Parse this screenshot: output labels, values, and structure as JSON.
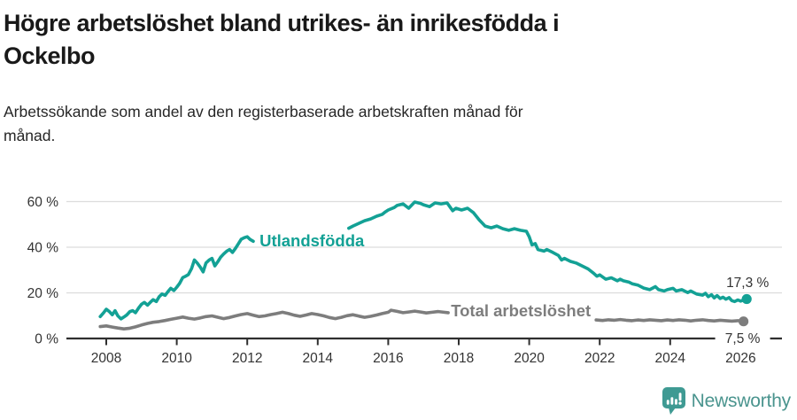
{
  "header": {
    "title_lines": [
      "Högre arbetslöshet bland utrikes- än inrikesfödda i",
      "Ockelbo"
    ],
    "subtitle_lines": [
      "Arbetssökande som andel av den registerbaserade arbetskraften månad för",
      "månad."
    ]
  },
  "footer": {
    "brand_name": "Newsworthy",
    "brand_color": "#4a948e",
    "icon_color": "#3f9a93"
  },
  "chart_data": {
    "type": "line",
    "title": "Högre arbetslöshet bland utrikes- än inrikesfödda i Ockelbo",
    "subtitle": "Arbetssökande som andel av den registerbaserade arbetskraften månad för månad.",
    "units": "%",
    "grid": true,
    "legend_position": "inline-labels",
    "colors": {
      "grid": "#dcdcdc",
      "axis": "#2f2f2f",
      "tick_text": "#333333",
      "annotation_text": "#333333"
    },
    "x_axis": {
      "tick_years": [
        2008,
        2010,
        2012,
        2014,
        2016,
        2018,
        2020,
        2022,
        2024,
        2026
      ],
      "tick_labels": [
        "2008",
        "2010",
        "2012",
        "2014",
        "2016",
        "2018",
        "2020",
        "2022",
        "2024",
        "2026"
      ],
      "range": [
        2007.7,
        2027.3
      ]
    },
    "y_axis": {
      "tick_values": [
        0,
        20,
        40,
        60
      ],
      "tick_labels": [
        "0 %",
        "20 %",
        "40 %",
        "60 %"
      ],
      "range": [
        0,
        63
      ]
    },
    "series": [
      {
        "name": "Utlandsfödda",
        "label": "Utlandsfödda",
        "color": "#13a195",
        "label_anchor": {
          "year": 2012.35,
          "value": 43.0
        },
        "end_label": "17,3 %",
        "end_value": 17.3,
        "end_label_position": "above",
        "segments": [
          [
            [
              2007.83,
              9.6
            ],
            [
              2007.92,
              11.2
            ],
            [
              2008.0,
              12.8
            ],
            [
              2008.08,
              11.9
            ],
            [
              2008.17,
              10.4
            ],
            [
              2008.25,
              12.2
            ],
            [
              2008.33,
              9.9
            ],
            [
              2008.42,
              8.6
            ],
            [
              2008.5,
              9.4
            ],
            [
              2008.58,
              10.3
            ],
            [
              2008.67,
              11.8
            ],
            [
              2008.75,
              12.2
            ],
            [
              2008.83,
              11.3
            ],
            [
              2008.92,
              13.4
            ],
            [
              2009.0,
              15.0
            ],
            [
              2009.08,
              15.8
            ],
            [
              2009.17,
              14.6
            ],
            [
              2009.25,
              15.9
            ],
            [
              2009.33,
              17.0
            ],
            [
              2009.42,
              16.2
            ],
            [
              2009.5,
              18.3
            ],
            [
              2009.58,
              19.5
            ],
            [
              2009.67,
              18.9
            ],
            [
              2009.75,
              20.5
            ],
            [
              2009.83,
              22.0
            ],
            [
              2009.92,
              21.0
            ],
            [
              2010.0,
              22.5
            ],
            [
              2010.08,
              24.1
            ],
            [
              2010.17,
              26.7
            ],
            [
              2010.25,
              27.3
            ],
            [
              2010.33,
              28.0
            ],
            [
              2010.42,
              30.6
            ],
            [
              2010.5,
              34.4
            ],
            [
              2010.58,
              33.1
            ],
            [
              2010.67,
              31.2
            ],
            [
              2010.75,
              29.2
            ],
            [
              2010.83,
              33.1
            ],
            [
              2010.92,
              34.4
            ],
            [
              2011.0,
              35.1
            ],
            [
              2011.08,
              31.8
            ],
            [
              2011.17,
              33.8
            ],
            [
              2011.25,
              35.7
            ],
            [
              2011.33,
              37.0
            ],
            [
              2011.42,
              38.3
            ],
            [
              2011.5,
              39.0
            ],
            [
              2011.58,
              37.7
            ],
            [
              2011.67,
              39.6
            ],
            [
              2011.75,
              41.6
            ],
            [
              2011.83,
              43.5
            ],
            [
              2011.92,
              44.2
            ],
            [
              2012.0,
              44.6
            ],
            [
              2012.08,
              43.4
            ],
            [
              2012.17,
              42.6
            ]
          ],
          [
            [
              2014.88,
              48.3
            ],
            [
              2015.0,
              49.3
            ],
            [
              2015.17,
              50.5
            ],
            [
              2015.33,
              51.6
            ],
            [
              2015.5,
              52.4
            ],
            [
              2015.67,
              53.6
            ],
            [
              2015.83,
              54.4
            ],
            [
              2015.92,
              55.5
            ],
            [
              2016.0,
              56.3
            ],
            [
              2016.17,
              57.4
            ],
            [
              2016.25,
              58.3
            ],
            [
              2016.42,
              59.0
            ],
            [
              2016.58,
              57.1
            ],
            [
              2016.75,
              59.8
            ],
            [
              2016.92,
              59.2
            ],
            [
              2017.0,
              58.6
            ],
            [
              2017.17,
              57.8
            ],
            [
              2017.33,
              59.4
            ],
            [
              2017.5,
              59.0
            ],
            [
              2017.67,
              59.4
            ],
            [
              2017.83,
              56.0
            ],
            [
              2017.92,
              57.1
            ],
            [
              2018.08,
              56.3
            ],
            [
              2018.25,
              57.1
            ],
            [
              2018.42,
              55.1
            ],
            [
              2018.58,
              52.0
            ],
            [
              2018.75,
              49.3
            ],
            [
              2018.92,
              48.5
            ],
            [
              2019.08,
              49.3
            ],
            [
              2019.25,
              48.1
            ],
            [
              2019.42,
              47.4
            ],
            [
              2019.58,
              48.1
            ],
            [
              2019.75,
              47.4
            ],
            [
              2019.92,
              47.0
            ],
            [
              2020.0,
              44.6
            ],
            [
              2020.08,
              41.0
            ],
            [
              2020.17,
              41.6
            ],
            [
              2020.25,
              39.0
            ],
            [
              2020.42,
              38.3
            ],
            [
              2020.5,
              39.0
            ],
            [
              2020.67,
              37.7
            ],
            [
              2020.83,
              36.4
            ],
            [
              2020.92,
              34.4
            ],
            [
              2021.0,
              35.1
            ],
            [
              2021.17,
              33.8
            ],
            [
              2021.33,
              33.1
            ],
            [
              2021.5,
              31.8
            ],
            [
              2021.67,
              30.5
            ],
            [
              2021.83,
              28.6
            ],
            [
              2021.92,
              27.3
            ],
            [
              2022.0,
              27.9
            ],
            [
              2022.17,
              26.0
            ],
            [
              2022.33,
              26.6
            ],
            [
              2022.5,
              25.3
            ],
            [
              2022.58,
              26.0
            ],
            [
              2022.67,
              25.3
            ],
            [
              2022.83,
              24.7
            ],
            [
              2022.92,
              24.0
            ],
            [
              2023.08,
              23.4
            ],
            [
              2023.25,
              22.1
            ],
            [
              2023.42,
              21.4
            ],
            [
              2023.58,
              22.7
            ],
            [
              2023.67,
              21.4
            ],
            [
              2023.83,
              20.8
            ],
            [
              2023.92,
              21.4
            ],
            [
              2024.08,
              22.0
            ],
            [
              2024.17,
              20.8
            ],
            [
              2024.33,
              21.4
            ],
            [
              2024.5,
              20.1
            ],
            [
              2024.58,
              20.8
            ],
            [
              2024.75,
              19.5
            ],
            [
              2024.92,
              19.0
            ],
            [
              2025.0,
              19.8
            ],
            [
              2025.08,
              18.3
            ],
            [
              2025.17,
              19.2
            ],
            [
              2025.25,
              17.8
            ],
            [
              2025.33,
              18.8
            ],
            [
              2025.42,
              17.5
            ],
            [
              2025.5,
              18.1
            ],
            [
              2025.58,
              17.2
            ],
            [
              2025.67,
              17.9
            ],
            [
              2025.75,
              16.6
            ],
            [
              2025.83,
              16.2
            ],
            [
              2025.92,
              16.9
            ],
            [
              2026.0,
              16.4
            ],
            [
              2026.08,
              16.9
            ],
            [
              2026.17,
              17.3
            ]
          ]
        ]
      },
      {
        "name": "Total arbetslöshet",
        "label": "Total arbetslöshet",
        "color": "#7d7d7d",
        "label_anchor": {
          "year": 2017.78,
          "value": 12.3
        },
        "end_label": "7,5 %",
        "end_value": 7.5,
        "end_label_position": "below-on-axis",
        "segments": [
          [
            [
              2007.83,
              5.2
            ],
            [
              2008.0,
              5.5
            ],
            [
              2008.17,
              5.0
            ],
            [
              2008.33,
              4.6
            ],
            [
              2008.5,
              4.2
            ],
            [
              2008.67,
              4.5
            ],
            [
              2008.83,
              5.1
            ],
            [
              2009.0,
              5.9
            ],
            [
              2009.17,
              6.6
            ],
            [
              2009.33,
              7.1
            ],
            [
              2009.5,
              7.4
            ],
            [
              2009.67,
              7.9
            ],
            [
              2009.83,
              8.4
            ],
            [
              2010.0,
              8.9
            ],
            [
              2010.17,
              9.4
            ],
            [
              2010.33,
              8.9
            ],
            [
              2010.5,
              8.5
            ],
            [
              2010.67,
              9.0
            ],
            [
              2010.83,
              9.6
            ],
            [
              2011.0,
              9.9
            ],
            [
              2011.17,
              9.3
            ],
            [
              2011.33,
              8.7
            ],
            [
              2011.5,
              9.2
            ],
            [
              2011.67,
              9.9
            ],
            [
              2011.83,
              10.5
            ],
            [
              2012.0,
              10.9
            ],
            [
              2012.17,
              10.2
            ],
            [
              2012.33,
              9.6
            ],
            [
              2012.5,
              9.9
            ],
            [
              2012.67,
              10.5
            ],
            [
              2012.83,
              10.9
            ],
            [
              2013.0,
              11.5
            ],
            [
              2013.17,
              10.9
            ],
            [
              2013.33,
              10.2
            ],
            [
              2013.5,
              9.7
            ],
            [
              2013.67,
              10.3
            ],
            [
              2013.83,
              10.9
            ],
            [
              2014.0,
              10.5
            ],
            [
              2014.17,
              9.9
            ],
            [
              2014.33,
              9.2
            ],
            [
              2014.5,
              8.7
            ],
            [
              2014.67,
              9.3
            ],
            [
              2014.83,
              10.0
            ],
            [
              2015.0,
              10.4
            ],
            [
              2015.17,
              9.8
            ],
            [
              2015.33,
              9.3
            ],
            [
              2015.5,
              9.7
            ],
            [
              2015.67,
              10.3
            ],
            [
              2015.83,
              10.9
            ],
            [
              2016.0,
              11.5
            ],
            [
              2016.08,
              12.4
            ],
            [
              2016.25,
              11.9
            ],
            [
              2016.42,
              11.3
            ],
            [
              2016.58,
              11.6
            ],
            [
              2016.75,
              12.0
            ],
            [
              2016.92,
              11.6
            ],
            [
              2017.08,
              11.2
            ],
            [
              2017.25,
              11.5
            ],
            [
              2017.42,
              11.8
            ],
            [
              2017.58,
              11.5
            ],
            [
              2017.7,
              11.3
            ]
          ],
          [
            [
              2021.9,
              8.1
            ],
            [
              2022.08,
              7.9
            ],
            [
              2022.25,
              8.2
            ],
            [
              2022.42,
              8.0
            ],
            [
              2022.58,
              8.3
            ],
            [
              2022.75,
              8.0
            ],
            [
              2022.92,
              7.8
            ],
            [
              2023.08,
              8.1
            ],
            [
              2023.25,
              7.9
            ],
            [
              2023.42,
              8.2
            ],
            [
              2023.58,
              8.0
            ],
            [
              2023.75,
              7.8
            ],
            [
              2023.92,
              8.1
            ],
            [
              2024.08,
              7.9
            ],
            [
              2024.25,
              8.2
            ],
            [
              2024.42,
              8.0
            ],
            [
              2024.58,
              7.7
            ],
            [
              2024.75,
              8.0
            ],
            [
              2024.92,
              8.2
            ],
            [
              2025.08,
              7.9
            ],
            [
              2025.25,
              7.7
            ],
            [
              2025.42,
              8.0
            ],
            [
              2025.58,
              7.8
            ],
            [
              2025.75,
              7.6
            ],
            [
              2025.92,
              7.8
            ],
            [
              2026.08,
              7.5
            ]
          ]
        ]
      }
    ]
  }
}
